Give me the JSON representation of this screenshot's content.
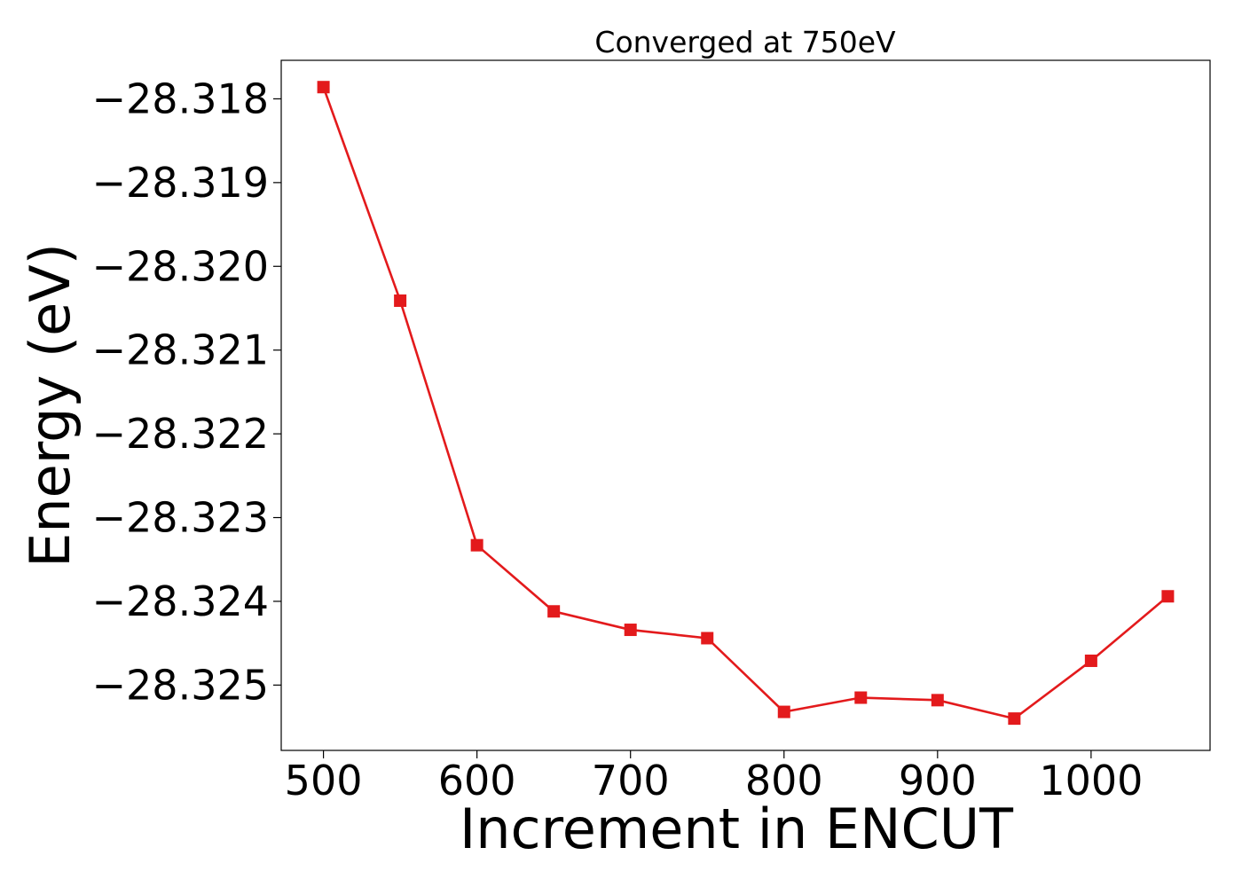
{
  "chart_data": {
    "type": "line",
    "title": "Converged at 750eV",
    "xlabel": "Increment in ENCUT",
    "ylabel": "Energy (eV)",
    "xlim": [
      472.5,
      1077.5
    ],
    "ylim": [
      -28.32578,
      -28.31754
    ],
    "xticks": [
      500,
      600,
      700,
      800,
      900,
      1000
    ],
    "xtick_labels": [
      "500",
      "600",
      "700",
      "800",
      "900",
      "1000"
    ],
    "yticks": [
      -28.318,
      -28.319,
      -28.32,
      -28.321,
      -28.322,
      -28.323,
      -28.324,
      -28.325
    ],
    "ytick_labels": [
      "−28.318",
      "−28.319",
      "−28.320",
      "−28.321",
      "−28.322",
      "−28.323",
      "−28.324",
      "−28.325"
    ],
    "grid": false,
    "series": [
      {
        "color": "#e31a1c",
        "marker": "square",
        "x": [
          500,
          550,
          600,
          650,
          700,
          750,
          800,
          850,
          900,
          950,
          1000,
          1050
        ],
        "y": [
          -28.31786,
          -28.32041,
          -28.32333,
          -28.32412,
          -28.32434,
          -28.32444,
          -28.32532,
          -28.32515,
          -28.32518,
          -28.3254,
          -28.32471,
          -28.32394
        ]
      }
    ]
  }
}
